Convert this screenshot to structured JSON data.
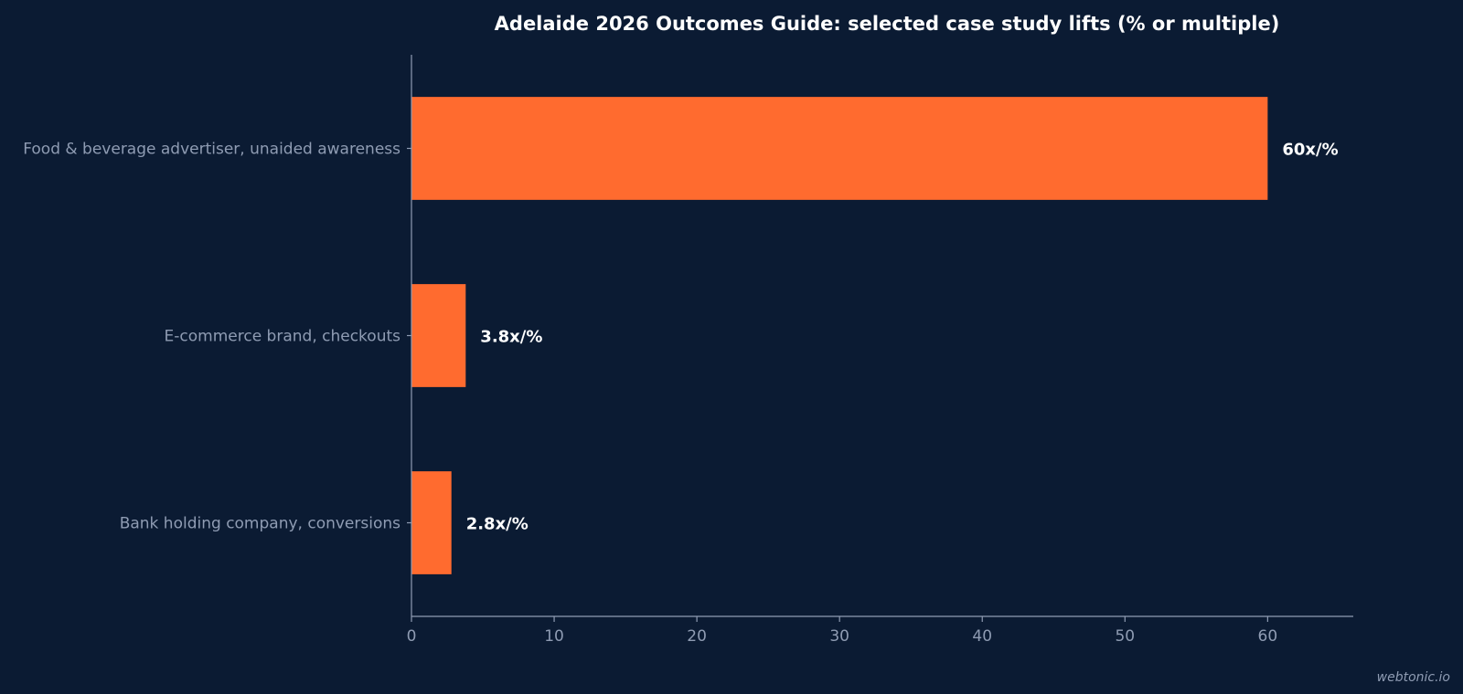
{
  "chart_data": {
    "type": "bar",
    "orientation": "horizontal",
    "title": "Adelaide 2026 Outcomes Guide: selected case study lifts (% or multiple)",
    "categories": [
      "Food & beverage advertiser, unaided awareness",
      "E-commerce brand, checkouts",
      "Bank holding company, conversions"
    ],
    "values": [
      60,
      3.8,
      2.8
    ],
    "data_labels": [
      "60x/%",
      "3.8x/%",
      "2.8x/%"
    ],
    "xlim": [
      0,
      66
    ],
    "x_ticks": [
      0,
      10,
      20,
      30,
      40,
      50,
      60
    ],
    "xlabel": "",
    "ylabel": "",
    "grid": false,
    "bar_color": "#ff6b2f"
  },
  "colors": {
    "background": "#0b1b33",
    "bar": "#ff6b2f",
    "axis": "#8f9cb3",
    "title": "#ffffff"
  },
  "watermark": "webtonic.io"
}
